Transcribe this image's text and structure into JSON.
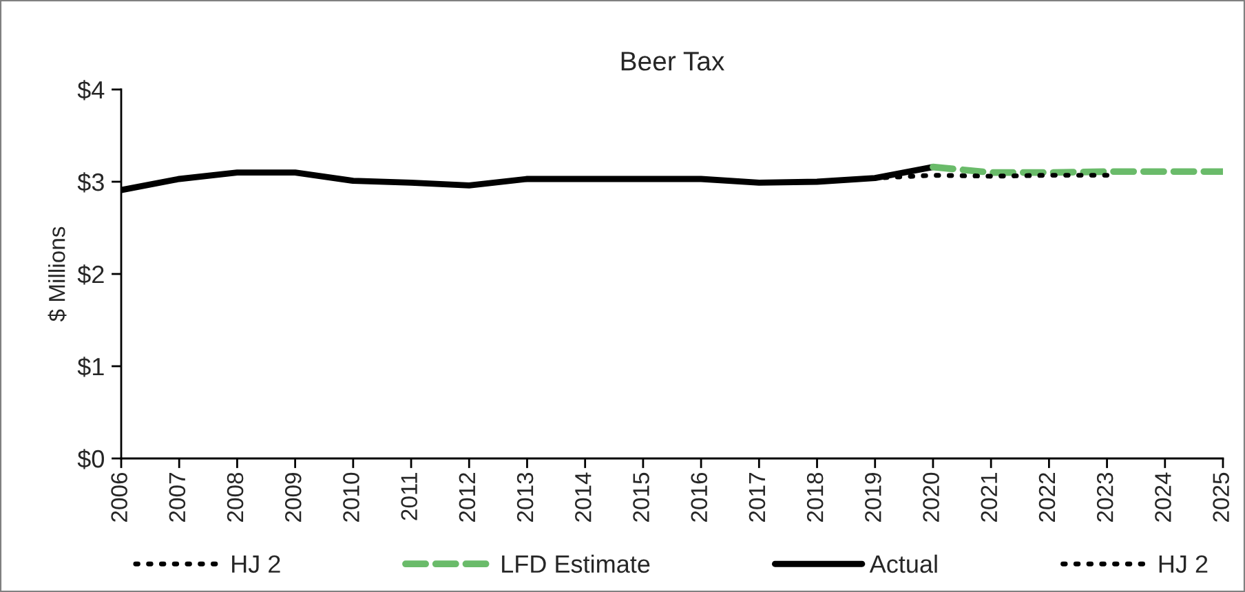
{
  "chart_data": {
    "type": "line",
    "title": "Beer Tax",
    "ylabel": "$ Millions",
    "categories": [
      "2006",
      "2007",
      "2008",
      "2009",
      "2010",
      "2011",
      "2012",
      "2013",
      "2014",
      "2015",
      "2016",
      "2017",
      "2018",
      "2019",
      "2020",
      "2021",
      "2022",
      "2023",
      "2024",
      "2025"
    ],
    "series": [
      {
        "name": "HJ 2",
        "color": "#000000",
        "line_style": "dotted",
        "values": [
          null,
          null,
          null,
          null,
          null,
          null,
          null,
          null,
          null,
          null,
          null,
          null,
          null,
          3.04,
          3.07,
          3.06,
          3.07,
          3.07,
          null,
          null
        ]
      },
      {
        "name": "LFD Estimate",
        "color": "#6abb6a",
        "line_style": "dashed",
        "values": [
          null,
          null,
          null,
          null,
          null,
          null,
          null,
          null,
          null,
          null,
          null,
          null,
          null,
          null,
          3.16,
          3.1,
          3.1,
          3.11,
          3.11,
          3.11
        ]
      },
      {
        "name": "Actual",
        "color": "#000000",
        "line_style": "solid",
        "values": [
          2.91,
          3.03,
          3.1,
          3.1,
          3.01,
          2.99,
          2.96,
          3.03,
          3.03,
          3.03,
          3.03,
          2.99,
          3.0,
          3.04,
          3.16,
          null,
          null,
          null,
          null,
          null
        ]
      },
      {
        "name": "HJ 2",
        "color": "#000000",
        "line_style": "dotted",
        "values": [
          null,
          null,
          null,
          null,
          null,
          null,
          null,
          null,
          null,
          null,
          null,
          null,
          null,
          null,
          null,
          null,
          null,
          null,
          null,
          null
        ]
      }
    ],
    "ylim": [
      0,
      4
    ],
    "yticks": [
      {
        "value": 0,
        "label": "$0"
      },
      {
        "value": 1,
        "label": "$1"
      },
      {
        "value": 2,
        "label": "$2"
      },
      {
        "value": 3,
        "label": "$3"
      },
      {
        "value": 4,
        "label": "$4"
      }
    ],
    "grid": false,
    "legend": "bottom",
    "marker": "none"
  }
}
